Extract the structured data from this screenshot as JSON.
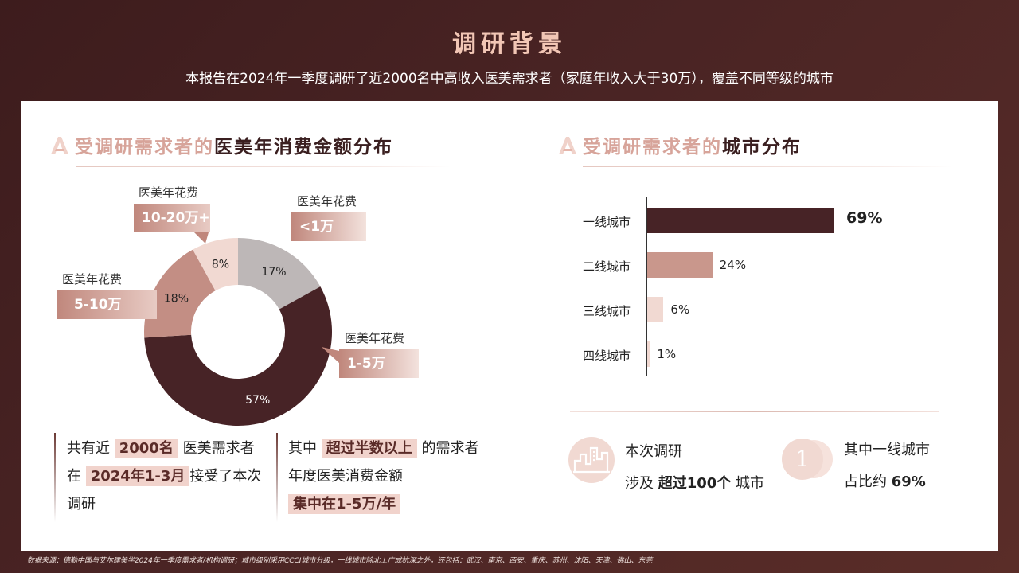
{
  "header": {
    "title": "调研背景",
    "subtitle": "本报告在2024年一季度调研了近2000名中高收入医美需求者（家庭年收入大于30万），覆盖不同等级的城市"
  },
  "left": {
    "heading_light": "受调研需求者的",
    "heading_dark": "医美年消费金额分布",
    "callouts": [
      {
        "label": "医美年花费",
        "value": "<1万"
      },
      {
        "label": "医美年花费",
        "value": "1-5万"
      },
      {
        "label": "医美年花费",
        "value": "5-10万"
      },
      {
        "label": "医美年花费",
        "value": "10-20万+"
      }
    ],
    "note1": {
      "p1": "共有近",
      "h1": "2000名",
      "p2": "医美需求者",
      "p3": "在",
      "h2": "2024年1-3月",
      "p4": "接受了本次",
      "p5": "调研"
    },
    "note2": {
      "p1": "其中",
      "h1": "超过半数以上",
      "p2": "的需求者",
      "p3": "年度医美消费金额",
      "h2": "集中在1-5万/年"
    }
  },
  "right": {
    "heading_light": "受调研需求者的",
    "heading_dark": "城市分布",
    "stat1": {
      "line1": "本次调研",
      "p1": "涉及",
      "bold": "超过100个",
      "p2": "城市"
    },
    "stat2": {
      "line1": "其中一线城市",
      "p1": "占比约",
      "bold": "69%",
      "numeral": "1"
    }
  },
  "chart_data": [
    {
      "type": "pie",
      "categories": [
        "<1万",
        "1-5万",
        "5-10万",
        "10-20万+"
      ],
      "values": [
        17,
        57,
        18,
        8
      ],
      "labels": [
        "17%",
        "57%",
        "18%",
        "8%"
      ],
      "colors": [
        "#bdb7b7",
        "#472326",
        "#c38e84",
        "#f1d9d2"
      ]
    },
    {
      "type": "bar",
      "categories": [
        "一线城市",
        "二线城市",
        "三线城市",
        "四线城市"
      ],
      "values": [
        69,
        24,
        6,
        1
      ],
      "labels": [
        "69%",
        "24%",
        "6%",
        "1%"
      ],
      "colors": [
        "#472326",
        "#c9978c",
        "#f1d9d2",
        "#f1d9d2"
      ]
    }
  ],
  "footer": "数据来源：德勤中国与艾尔建美学2024年一季度需求者/机构调研；城市级别采用CCCI城市分级，一线城市除北上广成杭深之外，还包括：武汉、南京、西安、重庆、苏州、沈阳、天津、佛山、东莞"
}
